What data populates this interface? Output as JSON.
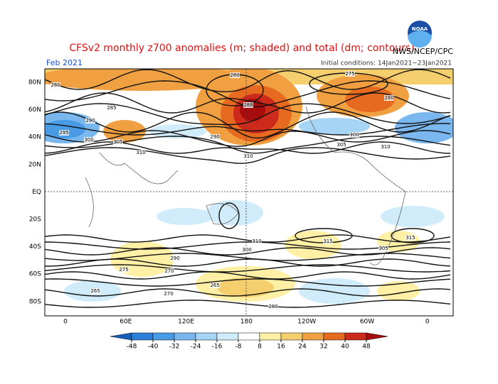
{
  "header": {
    "title": "CFSv2 monthly z700 anomalies (m; shaded) and total (dm; contours)",
    "agency": "NWS/NCEP/CPC",
    "logo": "NOAA",
    "period": "Feb 2021",
    "initial_conditions": "Initial conditions: 14Jan2021−23Jan2021"
  },
  "map": {
    "lat_labels": [
      "80N",
      "60N",
      "40N",
      "20N",
      "EQ",
      "20S",
      "40S",
      "60S",
      "80S"
    ],
    "lon_labels": [
      "0",
      "60E",
      "120E",
      "180",
      "120W",
      "60W",
      "0"
    ],
    "contour_labels": [
      "280",
      "275",
      "280",
      "280",
      "285",
      "288",
      "290",
      "295",
      "300",
      "305",
      "310",
      "310",
      "310",
      "305",
      "300",
      "290",
      "310",
      "315",
      "315",
      "305",
      "300",
      "275",
      "270",
      "265",
      "270",
      "265",
      "280",
      "290"
    ]
  },
  "colorbar": {
    "ticks": [
      -48,
      -40,
      -32,
      -24,
      -16,
      -8,
      8,
      16,
      24,
      32,
      40,
      48
    ],
    "colors": [
      "#1560bd",
      "#2c7fd6",
      "#4a9be6",
      "#7ab7ee",
      "#a6d4f5",
      "#d0ecfa",
      "#ffffff",
      "#fff0a6",
      "#f5cf6d",
      "#f0a040",
      "#e66a1f",
      "#cc2a1a",
      "#a80d0d"
    ]
  }
}
